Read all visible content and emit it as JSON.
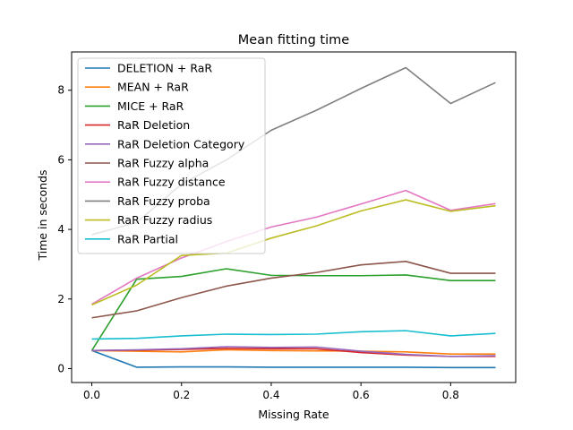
{
  "chart_data": {
    "type": "line",
    "title": "Mean fitting time",
    "xlabel": "Missing Rate",
    "ylabel": "Time in seconds",
    "xlim": [
      -0.045,
      0.945
    ],
    "ylim": [
      -0.4,
      9.1
    ],
    "xticks": [
      0.0,
      0.2,
      0.4,
      0.6,
      0.8
    ],
    "xtick_labels": [
      "0.0",
      "0.2",
      "0.4",
      "0.6",
      "0.8"
    ],
    "yticks": [
      0,
      2,
      4,
      6,
      8
    ],
    "ytick_labels": [
      "0",
      "2",
      "4",
      "6",
      "8"
    ],
    "grid": false,
    "legend_position": "upper-left",
    "x": [
      0.0,
      0.1,
      0.2,
      0.3,
      0.4,
      0.5,
      0.6,
      0.7,
      0.8,
      0.9
    ],
    "series": [
      {
        "name": "DELETION + RaR",
        "color": "#1f77b4",
        "values": [
          0.52,
          0.04,
          0.05,
          0.05,
          0.04,
          0.04,
          0.04,
          0.04,
          0.03,
          0.03
        ]
      },
      {
        "name": "MEAN + RaR",
        "color": "#ff7f0e",
        "values": [
          0.52,
          0.5,
          0.48,
          0.54,
          0.52,
          0.51,
          0.5,
          0.48,
          0.42,
          0.42
        ]
      },
      {
        "name": "MICE + RaR",
        "color": "#2ca02c",
        "values": [
          0.52,
          2.57,
          2.65,
          2.87,
          2.68,
          2.67,
          2.67,
          2.69,
          2.53,
          2.53
        ]
      },
      {
        "name": "RaR Deletion",
        "color": "#d62728",
        "values": [
          0.52,
          0.53,
          0.55,
          0.58,
          0.57,
          0.57,
          0.46,
          0.39,
          0.35,
          0.35
        ]
      },
      {
        "name": "RaR Deletion Category",
        "color": "#9467bd",
        "values": [
          0.52,
          0.54,
          0.57,
          0.63,
          0.61,
          0.62,
          0.5,
          0.41,
          0.35,
          0.37
        ]
      },
      {
        "name": "RaR Fuzzy alpha",
        "color": "#8c564b",
        "values": [
          1.46,
          1.66,
          2.04,
          2.37,
          2.6,
          2.76,
          2.98,
          3.08,
          2.74,
          2.74
        ]
      },
      {
        "name": "RaR Fuzzy distance",
        "color": "#e377c2",
        "values": [
          1.85,
          2.6,
          3.18,
          3.65,
          4.07,
          4.35,
          4.73,
          5.12,
          4.55,
          4.74
        ]
      },
      {
        "name": "RaR Fuzzy proba",
        "color": "#7f7f7f",
        "values": [
          3.85,
          4.2,
          5.3,
          6.0,
          6.85,
          7.42,
          8.05,
          8.65,
          7.62,
          8.22
        ]
      },
      {
        "name": "RaR Fuzzy radius",
        "color": "#bcbd22",
        "values": [
          1.83,
          2.4,
          3.25,
          3.32,
          3.75,
          4.1,
          4.53,
          4.85,
          4.52,
          4.68
        ]
      },
      {
        "name": "RaR Partial",
        "color": "#17becf",
        "values": [
          0.85,
          0.87,
          0.94,
          0.99,
          0.98,
          0.99,
          1.06,
          1.09,
          0.94,
          1.01
        ]
      }
    ]
  }
}
